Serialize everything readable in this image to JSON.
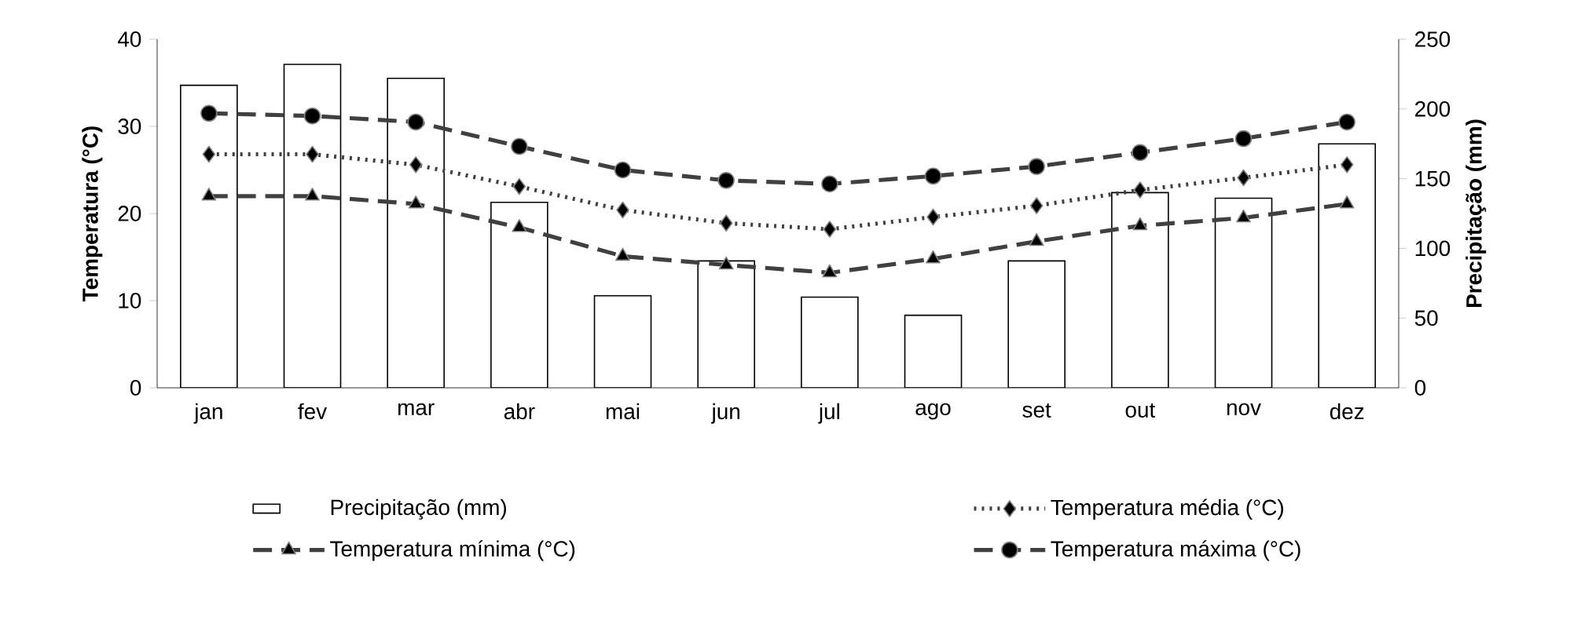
{
  "chart_data": {
    "type": "bar",
    "ylabel": "Temperatura (°C)",
    "y2label": "Precipitação (mm)",
    "categories": [
      "jan",
      "fev",
      "mar",
      "abr",
      "mai",
      "jun",
      "jul",
      "ago",
      "set",
      "out",
      "nov",
      "dez"
    ],
    "series": [
      {
        "name": "Precipitação (mm)",
        "axis": "y2",
        "color": "#ffffff",
        "values": [
          217,
          232,
          222,
          133,
          66,
          91,
          65,
          52,
          91,
          140,
          136,
          175
        ]
      },
      {
        "name": "Temperatura média (°C)",
        "type": "line",
        "marker": "diamond",
        "line_style": "dotted",
        "color": "#404040",
        "values": [
          26.8,
          26.8,
          25.6,
          23.1,
          20.4,
          18.9,
          18.2,
          19.6,
          20.9,
          22.7,
          24.1,
          25.6
        ]
      },
      {
        "name": "Temperatura mínima (°C)",
        "type": "line",
        "marker": "triangle",
        "line_style": "dashed",
        "color": "#404040",
        "values": [
          22.0,
          22.0,
          21.1,
          18.4,
          15.1,
          14.1,
          13.2,
          14.8,
          16.8,
          18.6,
          19.5,
          21.1
        ]
      },
      {
        "name": "Temperatura máxima (°C)",
        "type": "line",
        "marker": "circle",
        "line_style": "dashed",
        "color": "#404040",
        "values": [
          31.5,
          31.2,
          30.5,
          27.7,
          25.0,
          23.8,
          23.4,
          24.3,
          25.4,
          27.0,
          28.6,
          30.5
        ]
      }
    ],
    "ylim": [
      0,
      40
    ],
    "yticks": [
      0,
      10,
      20,
      30,
      40
    ],
    "y2lim": [
      0,
      250
    ],
    "y2ticks": [
      0,
      50,
      100,
      150,
      200,
      250
    ],
    "legend": "bottom"
  }
}
